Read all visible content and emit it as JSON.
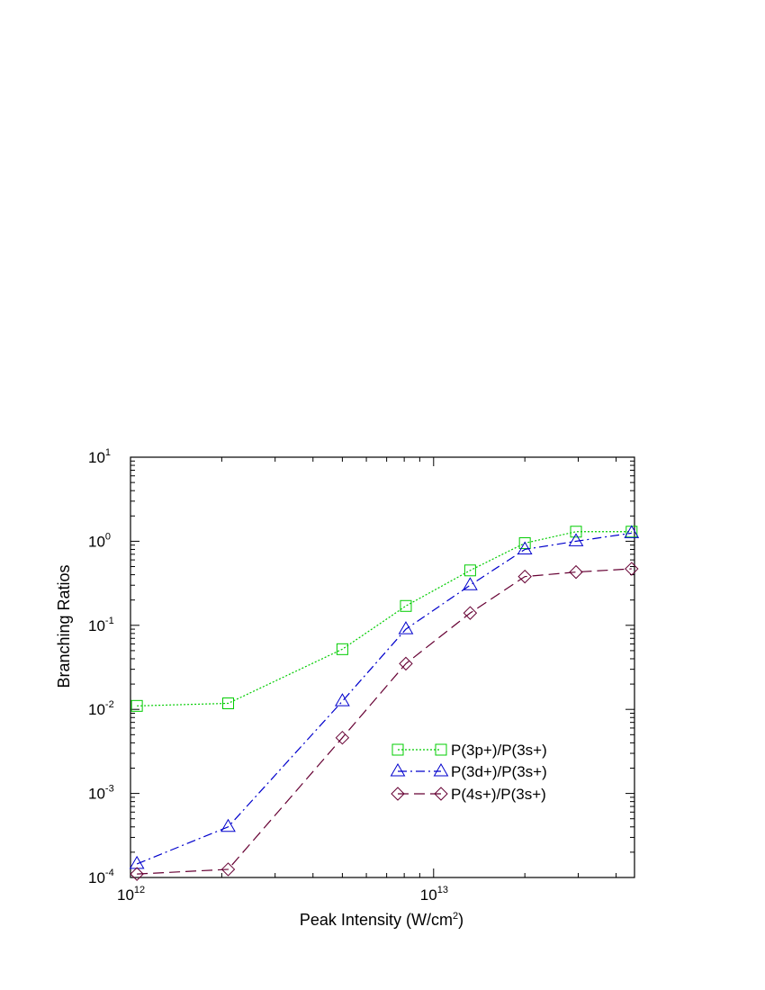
{
  "chart_data": {
    "type": "line",
    "title": "",
    "xlabel": {
      "text": "Peak Intensity (W/cm",
      "sup": "2",
      "close": ")"
    },
    "ylabel": "Branching Ratios",
    "x_scale": "log",
    "y_scale": "log",
    "xlim": [
      1000000000000.0,
      46000000000000.0
    ],
    "ylim": [
      0.0001,
      10
    ],
    "grid": false,
    "legend_position": "lower-right",
    "x_ticks": [
      {
        "value": 1000000000000.0,
        "base": "10",
        "exp": "12"
      },
      {
        "value": 10000000000000.0,
        "base": "10",
        "exp": "13"
      }
    ],
    "y_ticks": [
      {
        "value": 0.0001,
        "base": "10",
        "exp": "-4"
      },
      {
        "value": 0.001,
        "base": "10",
        "exp": "-3"
      },
      {
        "value": 0.01,
        "base": "10",
        "exp": "-2"
      },
      {
        "value": 0.1,
        "base": "10",
        "exp": "-1"
      },
      {
        "value": 1,
        "base": "10",
        "exp": "0"
      },
      {
        "value": 10,
        "base": "10",
        "exp": "1"
      }
    ],
    "series": [
      {
        "name": "P(3p+)/P(3s+)",
        "color": "#00cc00",
        "marker": "square",
        "dash": "dotted",
        "x": [
          1050000000000.0,
          2100000000000.0,
          5000000000000.0,
          8100000000000.0,
          13200000000000.0,
          20000000000000.0,
          29500000000000.0,
          45000000000000.0
        ],
        "y": [
          0.011,
          0.0118,
          0.052,
          0.17,
          0.45,
          0.95,
          1.3,
          1.3
        ]
      },
      {
        "name": "P(3d+)/P(3s+)",
        "color": "#0000cc",
        "marker": "triangle",
        "dash": "dashdot",
        "x": [
          1050000000000.0,
          2100000000000.0,
          5000000000000.0,
          8100000000000.0,
          13200000000000.0,
          20000000000000.0,
          29500000000000.0,
          45000000000000.0
        ],
        "y": [
          0.000145,
          0.0004,
          0.0125,
          0.09,
          0.3,
          0.8,
          1.0,
          1.25
        ]
      },
      {
        "name": "P(4s+)/P(3s+)",
        "color": "#660033",
        "marker": "diamond",
        "dash": "longdash",
        "x": [
          1050000000000.0,
          2100000000000.0,
          5000000000000.0,
          8100000000000.0,
          13200000000000.0,
          20000000000000.0,
          29500000000000.0,
          45000000000000.0
        ],
        "y": [
          0.00011,
          0.000125,
          0.0046,
          0.035,
          0.14,
          0.38,
          0.43,
          0.47
        ]
      }
    ]
  }
}
